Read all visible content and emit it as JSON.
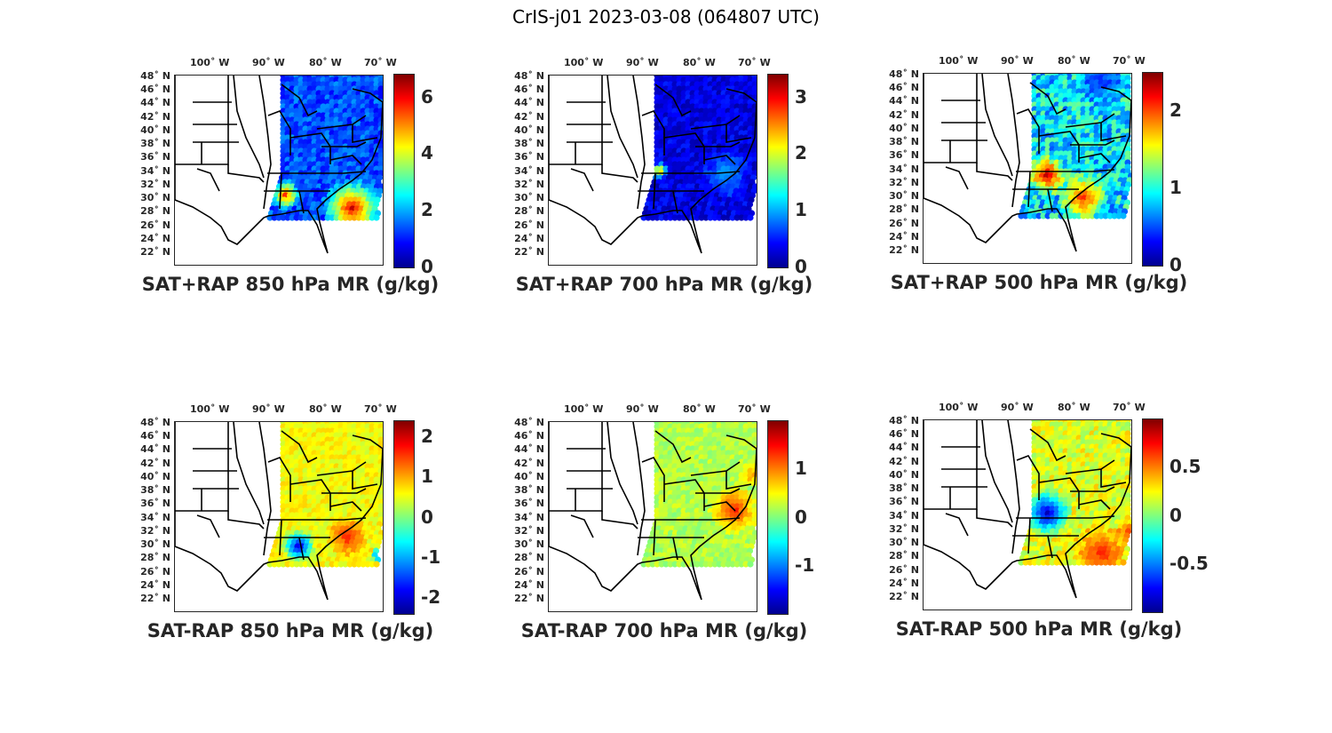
{
  "figure": {
    "title": "CrIS-j01 2023-03-08 (064807 UTC)",
    "lon_labels": [
      "100˚ W",
      "90˚ W",
      "80˚ W",
      "70˚ W"
    ],
    "lat_labels": [
      "48˚ N",
      "46˚ N",
      "44˚ N",
      "42˚ N",
      "40˚ N",
      "38˚ N",
      "36˚ N",
      "34˚ N",
      "32˚ N",
      "30˚ N",
      "28˚ N",
      "26˚ N",
      "24˚ N",
      "22˚ N"
    ],
    "colormap": "jet"
  },
  "panels": [
    {
      "title": "SAT+RAP 850 hPa MR (g/kg)",
      "cbar_ticks": [
        "6",
        "4",
        "2",
        "0"
      ],
      "cbar_range": [
        0,
        6.8
      ],
      "cbar_values": [
        6,
        4,
        2,
        0
      ]
    },
    {
      "title": "SAT+RAP 700 hPa MR (g/kg)",
      "cbar_ticks": [
        "3",
        "2",
        "1",
        "0"
      ],
      "cbar_range": [
        0,
        3.4
      ],
      "cbar_values": [
        3,
        2,
        1,
        0
      ]
    },
    {
      "title": "SAT+RAP 500 hPa MR (g/kg)",
      "cbar_ticks": [
        "2",
        "1",
        "0"
      ],
      "cbar_range": [
        0,
        2.5
      ],
      "cbar_values": [
        2,
        1,
        0
      ]
    },
    {
      "title": "SAT-RAP 850 hPa MR (g/kg)",
      "cbar_ticks": [
        "2",
        "1",
        "0",
        "-1",
        "-2"
      ],
      "cbar_range": [
        -2.4,
        2.4
      ],
      "cbar_values": [
        2,
        1,
        0,
        -1,
        -2
      ]
    },
    {
      "title": "SAT-RAP 700 hPa MR (g/kg)",
      "cbar_ticks": [
        "1",
        "0",
        "-1"
      ],
      "cbar_range": [
        -2,
        2
      ],
      "cbar_values": [
        1,
        0,
        -1
      ]
    },
    {
      "title": "SAT-RAP 500 hPa MR (g/kg)",
      "cbar_ticks": [
        "0.5",
        "0",
        "-0.5"
      ],
      "cbar_range": [
        -1,
        1
      ],
      "cbar_values": [
        0.5,
        0,
        -0.5
      ]
    }
  ]
}
